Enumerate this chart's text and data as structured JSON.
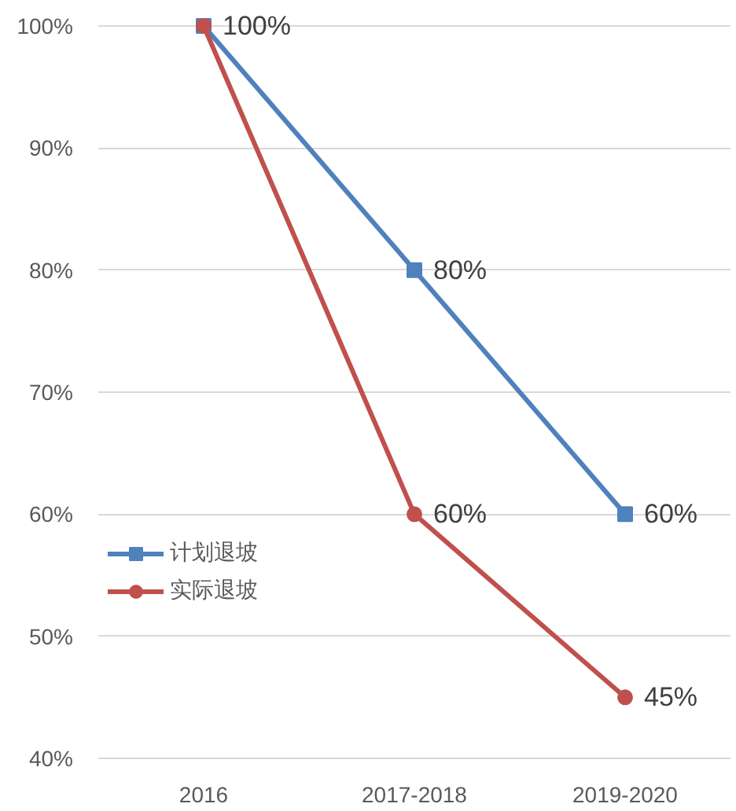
{
  "chart_data": {
    "type": "line",
    "categories": [
      "2016",
      "2017-2018",
      "2019-2020"
    ],
    "series": [
      {
        "name": "计划退坡",
        "color": "#4f81bd",
        "marker": "square",
        "values": [
          100,
          80,
          60
        ],
        "value_labels": [
          "100%",
          "80%",
          "60%"
        ]
      },
      {
        "name": "实际退坡",
        "color": "#c0504d",
        "marker": "circle",
        "values": [
          100,
          60,
          45
        ],
        "value_labels": [
          null,
          "60%",
          "45%"
        ]
      }
    ],
    "ylim": [
      40,
      100
    ],
    "yticks": [
      {
        "value": 40,
        "label": "40%"
      },
      {
        "value": 50,
        "label": "50%"
      },
      {
        "value": 60,
        "label": "60%"
      },
      {
        "value": 70,
        "label": "70%"
      },
      {
        "value": 80,
        "label": "80%"
      },
      {
        "value": 90,
        "label": "90%"
      },
      {
        "value": 100,
        "label": "100%"
      }
    ],
    "grid": "y",
    "legend": "bottom left",
    "line_style": "solid"
  }
}
